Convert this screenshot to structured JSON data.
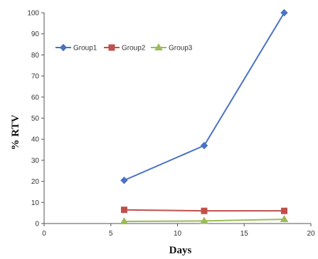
{
  "chart_data": {
    "type": "line",
    "title": "",
    "xlabel": "Days",
    "ylabel": "% RTV",
    "xlim": [
      0,
      20
    ],
    "ylim": [
      0,
      100
    ],
    "xticks": [
      0,
      5,
      10,
      15,
      20
    ],
    "yticks": [
      0,
      10,
      20,
      30,
      40,
      50,
      60,
      70,
      80,
      90,
      100
    ],
    "grid": false,
    "legend_position": "upper-left",
    "series": [
      {
        "name": "Group1",
        "color": "#4a72c4",
        "marker": "diamond",
        "x": [
          6,
          12,
          18
        ],
        "y": [
          20.5,
          37,
          100
        ]
      },
      {
        "name": "Group2",
        "color": "#c0504d",
        "marker": "square",
        "x": [
          6,
          12,
          18
        ],
        "y": [
          6.5,
          6,
          6
        ]
      },
      {
        "name": "Group3",
        "color": "#9bbb59",
        "marker": "triangle",
        "x": [
          6,
          12,
          18
        ],
        "y": [
          1,
          1.2,
          2
        ]
      }
    ]
  }
}
